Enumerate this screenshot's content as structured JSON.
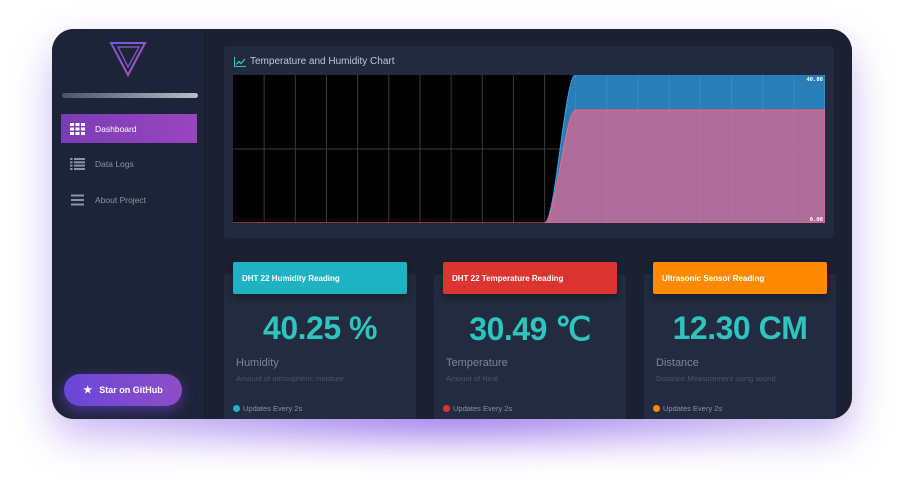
{
  "sidebar": {
    "progress": 1.0,
    "items": [
      {
        "label": "Dashboard",
        "icon": "grid-icon",
        "active": true
      },
      {
        "label": "Data Logs",
        "icon": "list-icon",
        "active": false
      },
      {
        "label": "About Project",
        "icon": "menu-icon",
        "active": false
      }
    ],
    "github_label": "Star on GitHub"
  },
  "chart": {
    "title": "Temperature and Humidity Chart"
  },
  "chart_data": {
    "type": "area",
    "title": "Temperature and Humidity Chart",
    "xlabel": "",
    "ylabel": "",
    "ylim": [
      0,
      40
    ],
    "y_tick_labels": [
      "40.00",
      "0.00"
    ],
    "grid": true,
    "x": [
      0,
      1,
      2,
      3,
      4,
      5,
      6,
      7,
      8,
      9,
      10,
      11,
      12,
      13,
      14,
      15,
      16,
      17,
      18,
      19
    ],
    "series": [
      {
        "values": [
          0,
          0,
          0,
          0,
          0,
          0,
          0,
          0,
          0,
          0,
          0,
          40.25,
          40.25,
          40.25,
          40.25,
          40.25,
          40.25,
          40.25,
          40.25,
          40.25
        ],
        "color": "#36a2eb"
      },
      {
        "values": [
          0,
          0,
          0,
          0,
          0,
          0,
          0,
          0,
          0,
          0,
          0,
          30.49,
          30.49,
          30.49,
          30.49,
          30.49,
          30.49,
          30.49,
          30.49,
          30.49
        ],
        "color": "#ff6384"
      }
    ]
  },
  "cards": [
    {
      "header": "DHT 22 Humidity Reading",
      "value": "40.25 %",
      "label": "Humidity",
      "desc": "Amount of atmospheric moisture",
      "foot": "Updates Every 2s",
      "color": "#1fb2c3",
      "dot": "#1fb2c3"
    },
    {
      "header": "DHT 22 Temperature Reading",
      "value": "30.49 ℃",
      "label": "Temperature",
      "desc": "Amount of Heat",
      "foot": "Updates Every 2s",
      "color": "#dc3430",
      "dot": "#dc3430"
    },
    {
      "header": "Ultrasonic Sensor Reading",
      "value": "12.30 CM",
      "label": "Distance",
      "desc": "Distance Measurement using sound",
      "foot": "Updates Every 2s",
      "color": "#ff8a00",
      "dot": "#ff8a00"
    }
  ]
}
